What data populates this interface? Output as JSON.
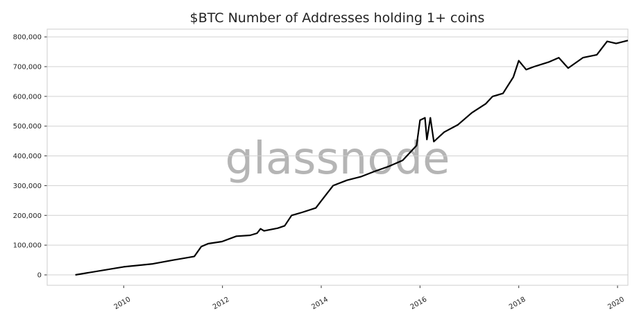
{
  "chart_data": {
    "type": "line",
    "title": "$BTC Number of Addresses holding 1+ coins",
    "watermark": "glassnode",
    "x": [
      2009.02,
      2010.0,
      2010.59,
      2011.01,
      2011.43,
      2011.57,
      2011.71,
      2011.99,
      2012.28,
      2012.56,
      2012.7,
      2012.77,
      2012.84,
      2013.12,
      2013.26,
      2013.4,
      2013.61,
      2013.89,
      2014.03,
      2014.24,
      2014.52,
      2014.8,
      2015.08,
      2015.37,
      2015.65,
      2015.93,
      2016.0,
      2016.1,
      2016.14,
      2016.21,
      2016.28,
      2016.49,
      2016.77,
      2017.05,
      2017.33,
      2017.47,
      2017.68,
      2017.89,
      2018.0,
      2018.15,
      2018.31,
      2018.6,
      2018.81,
      2019.0,
      2019.3,
      2019.58,
      2019.79,
      2019.97,
      2020.21
    ],
    "series": [
      {
        "name": "Addresses",
        "color": "#000000",
        "values": [
          0,
          27000,
          37000,
          50000,
          62000,
          95000,
          105000,
          112000,
          130000,
          133000,
          140000,
          155000,
          148000,
          157000,
          165000,
          200000,
          210000,
          225000,
          255000,
          300000,
          318000,
          330000,
          348000,
          365000,
          385000,
          435000,
          520000,
          528000,
          455000,
          528000,
          448000,
          480000,
          505000,
          545000,
          575000,
          600000,
          610000,
          665000,
          720000,
          690000,
          700000,
          715000,
          730000,
          695000,
          730000,
          740000,
          785000,
          778000,
          788000
        ]
      }
    ],
    "xlim": [
      2008.45,
      2020.21
    ],
    "xticks": [
      2010,
      2012,
      2014,
      2016,
      2018,
      2020
    ],
    "ylim": [
      -35000,
      826000
    ],
    "yticks": [
      0,
      {
        "value": 100000,
        "label": "100,000"
      },
      {
        "value": 200000,
        "label": "200,000"
      },
      {
        "value": 300000,
        "label": "300,000"
      },
      {
        "value": 400000,
        "label": "400,000"
      },
      {
        "value": 500000,
        "label": "500,000"
      },
      {
        "value": 600000,
        "label": "600,000"
      },
      {
        "value": 700000,
        "label": "700,000"
      },
      {
        "value": 800000,
        "label": "800,000"
      }
    ],
    "grid": true
  }
}
